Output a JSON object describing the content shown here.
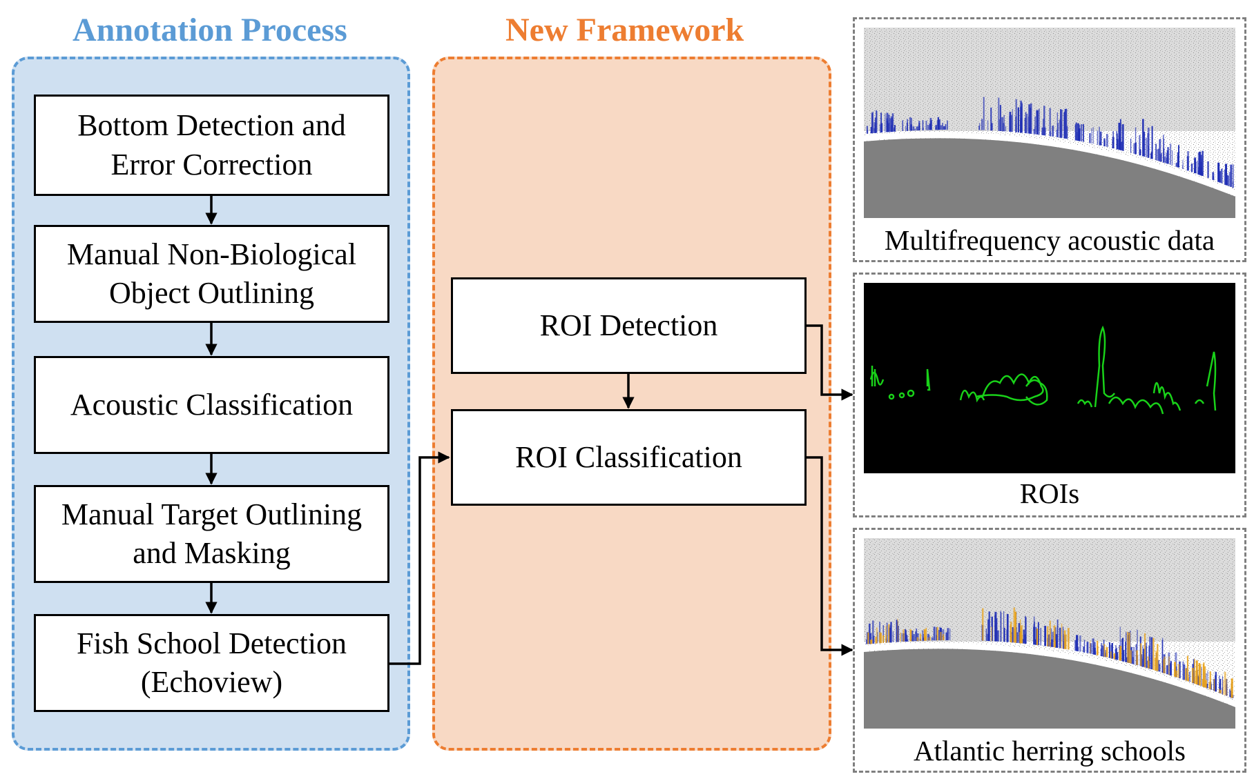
{
  "colors": {
    "annotation_accent": "#5b9bd5",
    "annotation_fill": "#cfe0f1",
    "framework_accent": "#ed7d31",
    "framework_fill": "#f8d9c4",
    "frame_gray": "#7f7f7f",
    "roi_green": "#19d219",
    "echo_blue": "#1f2eb4",
    "herring_orange": "#e8a21a"
  },
  "annotation_process": {
    "title": "Annotation Process",
    "steps": [
      {
        "lines": [
          "Bottom Detection and",
          "Error Correction"
        ]
      },
      {
        "lines": [
          "Manual Non-Biological",
          "Object Outlining"
        ]
      },
      {
        "lines": [
          "Acoustic Classification"
        ]
      },
      {
        "lines": [
          "Manual Target Outlining",
          "and Masking"
        ]
      },
      {
        "lines": [
          "Fish School Detection",
          "(Echoview)"
        ]
      }
    ]
  },
  "new_framework": {
    "title": "New Framework",
    "steps": [
      {
        "lines": [
          "ROI Detection"
        ]
      },
      {
        "lines": [
          "ROI Classification"
        ]
      }
    ]
  },
  "outputs": [
    {
      "caption": "Multifrequency acoustic data",
      "image": "echogram-image"
    },
    {
      "caption": "ROIs",
      "image": "roi-contours-image"
    },
    {
      "caption": "Atlantic herring schools",
      "image": "herring-echogram-image"
    }
  ]
}
